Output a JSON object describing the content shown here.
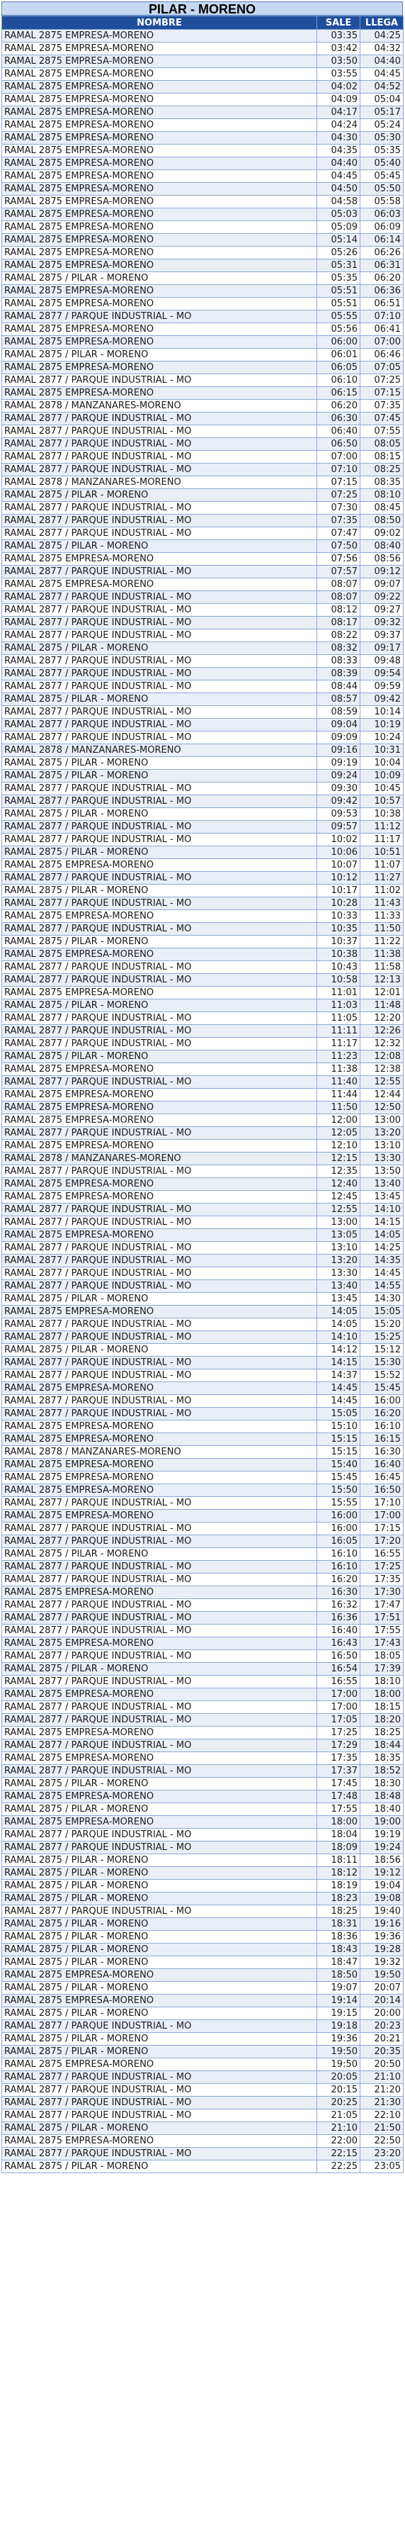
{
  "title": "PILAR - MORENO",
  "headers": {
    "name": "NOMBRE",
    "sale": "SALE",
    "llega": "LLEGA"
  },
  "rows": [
    [
      "RAMAL 2875 EMPRESA-MORENO",
      "03:35",
      "04:25"
    ],
    [
      "RAMAL 2875 EMPRESA-MORENO",
      "03:42",
      "04:32"
    ],
    [
      "RAMAL 2875 EMPRESA-MORENO",
      "03:50",
      "04:40"
    ],
    [
      "RAMAL 2875 EMPRESA-MORENO",
      "03:55",
      "04:45"
    ],
    [
      "RAMAL 2875 EMPRESA-MORENO",
      "04:02",
      "04:52"
    ],
    [
      "RAMAL 2875 EMPRESA-MORENO",
      "04:09",
      "05:04"
    ],
    [
      "RAMAL 2875 EMPRESA-MORENO",
      "04:17",
      "05:17"
    ],
    [
      "RAMAL 2875 EMPRESA-MORENO",
      "04:24",
      "05:24"
    ],
    [
      "RAMAL 2875 EMPRESA-MORENO",
      "04:30",
      "05:30"
    ],
    [
      "RAMAL 2875 EMPRESA-MORENO",
      "04:35",
      "05:35"
    ],
    [
      "RAMAL 2875 EMPRESA-MORENO",
      "04:40",
      "05:40"
    ],
    [
      "RAMAL 2875 EMPRESA-MORENO",
      "04:45",
      "05:45"
    ],
    [
      "RAMAL 2875 EMPRESA-MORENO",
      "04:50",
      "05:50"
    ],
    [
      "RAMAL 2875 EMPRESA-MORENO",
      "04:58",
      "05:58"
    ],
    [
      "RAMAL 2875 EMPRESA-MORENO",
      "05:03",
      "06:03"
    ],
    [
      "RAMAL 2875 EMPRESA-MORENO",
      "05:09",
      "06:09"
    ],
    [
      "RAMAL 2875 EMPRESA-MORENO",
      "05:14",
      "06:14"
    ],
    [
      "RAMAL 2875 EMPRESA-MORENO",
      "05:26",
      "06:26"
    ],
    [
      "RAMAL 2875 EMPRESA-MORENO",
      "05:31",
      "06:31"
    ],
    [
      "RAMAL 2875 / PILAR - MORENO",
      "05:35",
      "06:20"
    ],
    [
      "RAMAL 2875 EMPRESA-MORENO",
      "05:51",
      "06:36"
    ],
    [
      "RAMAL 2875 EMPRESA-MORENO",
      "05:51",
      "06:51"
    ],
    [
      "RAMAL 2877 / PARQUE INDUSTRIAL - MO",
      "05:55",
      "07:10"
    ],
    [
      "RAMAL 2875 EMPRESA-MORENO",
      "05:56",
      "06:41"
    ],
    [
      "RAMAL 2875 EMPRESA-MORENO",
      "06:00",
      "07:00"
    ],
    [
      "RAMAL 2875 / PILAR - MORENO",
      "06:01",
      "06:46"
    ],
    [
      "RAMAL 2875 EMPRESA-MORENO",
      "06:05",
      "07:05"
    ],
    [
      "RAMAL 2877 / PARQUE INDUSTRIAL - MO",
      "06:10",
      "07:25"
    ],
    [
      "RAMAL 2875 EMPRESA-MORENO",
      "06:15",
      "07:15"
    ],
    [
      "RAMAL 2878 / MANZANARES-MORENO",
      "06:20",
      "07:35"
    ],
    [
      "RAMAL 2877 / PARQUE INDUSTRIAL - MO",
      "06:30",
      "07:45"
    ],
    [
      "RAMAL 2877 / PARQUE INDUSTRIAL - MO",
      "06:40",
      "07:55"
    ],
    [
      "RAMAL 2877 / PARQUE INDUSTRIAL - MO",
      "06:50",
      "08:05"
    ],
    [
      "RAMAL 2877 / PARQUE INDUSTRIAL - MO",
      "07:00",
      "08:15"
    ],
    [
      "RAMAL 2877 / PARQUE INDUSTRIAL - MO",
      "07:10",
      "08:25"
    ],
    [
      "RAMAL 2878 / MANZANARES-MORENO",
      "07:15",
      "08:35"
    ],
    [
      "RAMAL 2875 / PILAR - MORENO",
      "07:25",
      "08:10"
    ],
    [
      "RAMAL 2877 / PARQUE INDUSTRIAL - MO",
      "07:30",
      "08:45"
    ],
    [
      "RAMAL 2877 / PARQUE INDUSTRIAL - MO",
      "07:35",
      "08:50"
    ],
    [
      "RAMAL 2877 / PARQUE INDUSTRIAL - MO",
      "07:47",
      "09:02"
    ],
    [
      "RAMAL 2875 / PILAR - MORENO",
      "07:50",
      "08:40"
    ],
    [
      "RAMAL 2875 EMPRESA-MORENO",
      "07:56",
      "08:56"
    ],
    [
      "RAMAL 2877 / PARQUE INDUSTRIAL - MO",
      "07:57",
      "09:12"
    ],
    [
      "RAMAL 2875 EMPRESA-MORENO",
      "08:07",
      "09:07"
    ],
    [
      "RAMAL 2877 / PARQUE INDUSTRIAL - MO",
      "08:07",
      "09:22"
    ],
    [
      "RAMAL 2877 / PARQUE INDUSTRIAL - MO",
      "08:12",
      "09:27"
    ],
    [
      "RAMAL 2877 / PARQUE INDUSTRIAL - MO",
      "08:17",
      "09:32"
    ],
    [
      "RAMAL 2877 / PARQUE INDUSTRIAL - MO",
      "08:22",
      "09:37"
    ],
    [
      "RAMAL 2875 / PILAR - MORENO",
      "08:32",
      "09:17"
    ],
    [
      "RAMAL 2877 / PARQUE INDUSTRIAL - MO",
      "08:33",
      "09:48"
    ],
    [
      "RAMAL 2877 / PARQUE INDUSTRIAL - MO",
      "08:39",
      "09:54"
    ],
    [
      "RAMAL 2877 / PARQUE INDUSTRIAL - MO",
      "08:44",
      "09:59"
    ],
    [
      "RAMAL 2875 / PILAR - MORENO",
      "08:57",
      "09:42"
    ],
    [
      "RAMAL 2877 / PARQUE INDUSTRIAL - MO",
      "08:59",
      "10:14"
    ],
    [
      "RAMAL 2877 / PARQUE INDUSTRIAL - MO",
      "09:04",
      "10:19"
    ],
    [
      "RAMAL 2877 / PARQUE INDUSTRIAL - MO",
      "09:09",
      "10:24"
    ],
    [
      "RAMAL 2878 / MANZANARES-MORENO",
      "09:16",
      "10:31"
    ],
    [
      "RAMAL 2875 / PILAR - MORENO",
      "09:19",
      "10:04"
    ],
    [
      "RAMAL 2875 / PILAR - MORENO",
      "09:24",
      "10:09"
    ],
    [
      "RAMAL 2877 / PARQUE INDUSTRIAL - MO",
      "09:30",
      "10:45"
    ],
    [
      "RAMAL 2877 / PARQUE INDUSTRIAL - MO",
      "09:42",
      "10:57"
    ],
    [
      "RAMAL 2875 / PILAR - MORENO",
      "09:53",
      "10:38"
    ],
    [
      "RAMAL 2877 / PARQUE INDUSTRIAL - MO",
      "09:57",
      "11:12"
    ],
    [
      "RAMAL 2877 / PARQUE INDUSTRIAL - MO",
      "10:02",
      "11:17"
    ],
    [
      "RAMAL 2875 / PILAR - MORENO",
      "10:06",
      "10:51"
    ],
    [
      "RAMAL 2875 EMPRESA-MORENO",
      "10:07",
      "11:07"
    ],
    [
      "RAMAL 2877 / PARQUE INDUSTRIAL - MO",
      "10:12",
      "11:27"
    ],
    [
      "RAMAL 2875 / PILAR - MORENO",
      "10:17",
      "11:02"
    ],
    [
      "RAMAL 2877 / PARQUE INDUSTRIAL - MO",
      "10:28",
      "11:43"
    ],
    [
      "RAMAL 2875 EMPRESA-MORENO",
      "10:33",
      "11:33"
    ],
    [
      "RAMAL 2877 / PARQUE INDUSTRIAL - MO",
      "10:35",
      "11:50"
    ],
    [
      "RAMAL 2875 / PILAR - MORENO",
      "10:37",
      "11:22"
    ],
    [
      "RAMAL 2875 EMPRESA-MORENO",
      "10:38",
      "11:38"
    ],
    [
      "RAMAL 2877 / PARQUE INDUSTRIAL - MO",
      "10:43",
      "11:58"
    ],
    [
      "RAMAL 2877 / PARQUE INDUSTRIAL - MO",
      "10:58",
      "12:13"
    ],
    [
      "RAMAL 2875 EMPRESA-MORENO",
      "11:01",
      "12:01"
    ],
    [
      "RAMAL 2875 / PILAR - MORENO",
      "11:03",
      "11:48"
    ],
    [
      "RAMAL 2877 / PARQUE INDUSTRIAL - MO",
      "11:05",
      "12:20"
    ],
    [
      "RAMAL 2877 / PARQUE INDUSTRIAL - MO",
      "11:11",
      "12:26"
    ],
    [
      "RAMAL 2877 / PARQUE INDUSTRIAL - MO",
      "11:17",
      "12:32"
    ],
    [
      "RAMAL 2875 / PILAR - MORENO",
      "11:23",
      "12:08"
    ],
    [
      "RAMAL 2875 EMPRESA-MORENO",
      "11:38",
      "12:38"
    ],
    [
      "RAMAL 2877 / PARQUE INDUSTRIAL - MO",
      "11:40",
      "12:55"
    ],
    [
      "RAMAL 2875 EMPRESA-MORENO",
      "11:44",
      "12:44"
    ],
    [
      "RAMAL 2875 EMPRESA-MORENO",
      "11:50",
      "12:50"
    ],
    [
      "RAMAL 2875 EMPRESA-MORENO",
      "12:00",
      "13:00"
    ],
    [
      "RAMAL 2877 / PARQUE INDUSTRIAL - MO",
      "12:05",
      "13:20"
    ],
    [
      "RAMAL 2875 EMPRESA-MORENO",
      "12:10",
      "13:10"
    ],
    [
      "RAMAL 2878 / MANZANARES-MORENO",
      "12:15",
      "13:30"
    ],
    [
      "RAMAL 2877 / PARQUE INDUSTRIAL - MO",
      "12:35",
      "13:50"
    ],
    [
      "RAMAL 2875 EMPRESA-MORENO",
      "12:40",
      "13:40"
    ],
    [
      "RAMAL 2875 EMPRESA-MORENO",
      "12:45",
      "13:45"
    ],
    [
      "RAMAL 2877 / PARQUE INDUSTRIAL - MO",
      "12:55",
      "14:10"
    ],
    [
      "RAMAL 2877 / PARQUE INDUSTRIAL - MO",
      "13:00",
      "14:15"
    ],
    [
      "RAMAL 2875 EMPRESA-MORENO",
      "13:05",
      "14:05"
    ],
    [
      "RAMAL 2877 / PARQUE INDUSTRIAL - MO",
      "13:10",
      "14:25"
    ],
    [
      "RAMAL 2877 / PARQUE INDUSTRIAL - MO",
      "13:20",
      "14:35"
    ],
    [
      "RAMAL 2877 / PARQUE INDUSTRIAL - MO",
      "13:30",
      "14:45"
    ],
    [
      "RAMAL 2877 / PARQUE INDUSTRIAL - MO",
      "13:40",
      "14:55"
    ],
    [
      "RAMAL 2875 / PILAR - MORENO",
      "13:45",
      "14:30"
    ],
    [
      "RAMAL 2875 EMPRESA-MORENO",
      "14:05",
      "15:05"
    ],
    [
      "RAMAL 2877 / PARQUE INDUSTRIAL - MO",
      "14:05",
      "15:20"
    ],
    [
      "RAMAL 2877 / PARQUE INDUSTRIAL - MO",
      "14:10",
      "15:25"
    ],
    [
      "RAMAL 2875 / PILAR - MORENO",
      "14:12",
      "15:12"
    ],
    [
      "RAMAL 2877 / PARQUE INDUSTRIAL - MO",
      "14:15",
      "15:30"
    ],
    [
      "RAMAL 2877 / PARQUE INDUSTRIAL - MO",
      "14:37",
      "15:52"
    ],
    [
      "RAMAL 2875 EMPRESA-MORENO",
      "14:45",
      "15:45"
    ],
    [
      "RAMAL 2877 / PARQUE INDUSTRIAL - MO",
      "14:45",
      "16:00"
    ],
    [
      "RAMAL 2877 / PARQUE INDUSTRIAL - MO",
      "15:05",
      "16:20"
    ],
    [
      "RAMAL 2875 EMPRESA-MORENO",
      "15:10",
      "16:10"
    ],
    [
      "RAMAL 2875 EMPRESA-MORENO",
      "15:15",
      "16:15"
    ],
    [
      "RAMAL 2878 / MANZANARES-MORENO",
      "15:15",
      "16:30"
    ],
    [
      "RAMAL 2875 EMPRESA-MORENO",
      "15:40",
      "16:40"
    ],
    [
      "RAMAL 2875 EMPRESA-MORENO",
      "15:45",
      "16:45"
    ],
    [
      "RAMAL 2875 EMPRESA-MORENO",
      "15:50",
      "16:50"
    ],
    [
      "RAMAL 2877 / PARQUE INDUSTRIAL - MO",
      "15:55",
      "17:10"
    ],
    [
      "RAMAL 2875 EMPRESA-MORENO",
      "16:00",
      "17:00"
    ],
    [
      "RAMAL 2877 / PARQUE INDUSTRIAL - MO",
      "16:00",
      "17:15"
    ],
    [
      "RAMAL 2877 / PARQUE INDUSTRIAL - MO",
      "16:05",
      "17:20"
    ],
    [
      "RAMAL 2875 / PILAR - MORENO",
      "16:10",
      "16:55"
    ],
    [
      "RAMAL 2877 / PARQUE INDUSTRIAL - MO",
      "16:10",
      "17:25"
    ],
    [
      "RAMAL 2877 / PARQUE INDUSTRIAL - MO",
      "16:20",
      "17:35"
    ],
    [
      "RAMAL 2875 EMPRESA-MORENO",
      "16:30",
      "17:30"
    ],
    [
      "RAMAL 2877 / PARQUE INDUSTRIAL - MO",
      "16:32",
      "17:47"
    ],
    [
      "RAMAL 2877 / PARQUE INDUSTRIAL - MO",
      "16:36",
      "17:51"
    ],
    [
      "RAMAL 2877 / PARQUE INDUSTRIAL - MO",
      "16:40",
      "17:55"
    ],
    [
      "RAMAL 2875 EMPRESA-MORENO",
      "16:43",
      "17:43"
    ],
    [
      "RAMAL 2877 / PARQUE INDUSTRIAL - MO",
      "16:50",
      "18:05"
    ],
    [
      "RAMAL 2875 / PILAR - MORENO",
      "16:54",
      "17:39"
    ],
    [
      "RAMAL 2877 / PARQUE INDUSTRIAL - MO",
      "16:55",
      "18:10"
    ],
    [
      "RAMAL 2875 EMPRESA-MORENO",
      "17:00",
      "18:00"
    ],
    [
      "RAMAL 2877 / PARQUE INDUSTRIAL - MO",
      "17:00",
      "18:15"
    ],
    [
      "RAMAL 2877 / PARQUE INDUSTRIAL - MO",
      "17:05",
      "18:20"
    ],
    [
      "RAMAL 2875 EMPRESA-MORENO",
      "17:25",
      "18:25"
    ],
    [
      "RAMAL 2877 / PARQUE INDUSTRIAL - MO",
      "17:29",
      "18:44"
    ],
    [
      "RAMAL 2875 EMPRESA-MORENO",
      "17:35",
      "18:35"
    ],
    [
      "RAMAL 2877 / PARQUE INDUSTRIAL - MO",
      "17:37",
      "18:52"
    ],
    [
      "RAMAL 2875 / PILAR - MORENO",
      "17:45",
      "18:30"
    ],
    [
      "RAMAL 2875 EMPRESA-MORENO",
      "17:48",
      "18:48"
    ],
    [
      "RAMAL 2875 / PILAR - MORENO",
      "17:55",
      "18:40"
    ],
    [
      "RAMAL 2875 EMPRESA-MORENO",
      "18:00",
      "19:00"
    ],
    [
      "RAMAL 2877 / PARQUE INDUSTRIAL - MO",
      "18:04",
      "19:19"
    ],
    [
      "RAMAL 2877 / PARQUE INDUSTRIAL - MO",
      "18:09",
      "19:24"
    ],
    [
      "RAMAL 2875 / PILAR - MORENO",
      "18:11",
      "18:56"
    ],
    [
      "RAMAL 2875 / PILAR - MORENO",
      "18:12",
      "19:12"
    ],
    [
      "RAMAL 2875 / PILAR - MORENO",
      "18:19",
      "19:04"
    ],
    [
      "RAMAL 2875 / PILAR - MORENO",
      "18:23",
      "19:08"
    ],
    [
      "RAMAL 2877 / PARQUE INDUSTRIAL - MO",
      "18:25",
      "19:40"
    ],
    [
      "RAMAL 2875 / PILAR - MORENO",
      "18:31",
      "19:16"
    ],
    [
      "RAMAL 2875 / PILAR - MORENO",
      "18:36",
      "19:36"
    ],
    [
      "RAMAL 2875 / PILAR - MORENO",
      "18:43",
      "19:28"
    ],
    [
      "RAMAL 2875 / PILAR - MORENO",
      "18:47",
      "19:32"
    ],
    [
      "RAMAL 2875 EMPRESA-MORENO",
      "18:50",
      "19:50"
    ],
    [
      "RAMAL 2875 / PILAR - MORENO",
      "19:07",
      "20:07"
    ],
    [
      "RAMAL 2875 EMPRESA-MORENO",
      "19:14",
      "20:14"
    ],
    [
      "RAMAL 2875 / PILAR - MORENO",
      "19:15",
      "20:00"
    ],
    [
      "RAMAL 2877 / PARQUE INDUSTRIAL - MO",
      "19:18",
      "20:23"
    ],
    [
      "RAMAL 2875 / PILAR - MORENO",
      "19:36",
      "20:21"
    ],
    [
      "RAMAL 2875 / PILAR - MORENO",
      "19:50",
      "20:35"
    ],
    [
      "RAMAL 2875 EMPRESA-MORENO",
      "19:50",
      "20:50"
    ],
    [
      "RAMAL 2877 / PARQUE INDUSTRIAL - MO",
      "20:05",
      "21:10"
    ],
    [
      "RAMAL 2877 / PARQUE INDUSTRIAL - MO",
      "20:15",
      "21:20"
    ],
    [
      "RAMAL 2877 / PARQUE INDUSTRIAL - MO",
      "20:25",
      "21:30"
    ],
    [
      "RAMAL 2877 / PARQUE INDUSTRIAL - MO",
      "21:05",
      "22:10"
    ],
    [
      "RAMAL 2875 / PILAR - MORENO",
      "21:10",
      "21:50"
    ],
    [
      "RAMAL 2875 EMPRESA-MORENO",
      "22:00",
      "22:50"
    ],
    [
      "RAMAL 2877 / PARQUE INDUSTRIAL - MO",
      "22:15",
      "23:20"
    ],
    [
      "RAMAL 2875 / PILAR - MORENO",
      "22:25",
      "23:05"
    ]
  ]
}
